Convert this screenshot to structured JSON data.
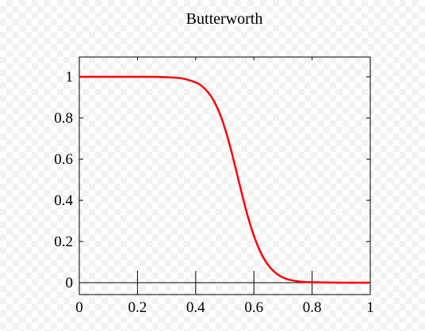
{
  "chart_data": {
    "type": "line",
    "title": "Butterworth",
    "xlabel": "",
    "ylabel": "",
    "xlim": [
      0,
      1
    ],
    "ylim": [
      -0.03,
      1.1
    ],
    "x_ticks": [
      {
        "value": 0,
        "label": "0"
      },
      {
        "value": 0.2,
        "label": "0.2"
      },
      {
        "value": 0.4,
        "label": "0.4"
      },
      {
        "value": 0.6,
        "label": "0.6"
      },
      {
        "value": 0.8,
        "label": "0.8"
      },
      {
        "value": 1,
        "label": "1"
      }
    ],
    "y_ticks": [
      {
        "value": 0,
        "label": "0"
      },
      {
        "value": 0.2,
        "label": "0.2"
      },
      {
        "value": 0.4,
        "label": "0.4"
      },
      {
        "value": 0.6,
        "label": "0.6"
      },
      {
        "value": 0.8,
        "label": "0.8"
      },
      {
        "value": 1,
        "label": "1"
      }
    ],
    "grid": false,
    "series": [
      {
        "color": "#ff0000",
        "x": [
          0,
          0.05,
          0.1,
          0.15,
          0.2,
          0.25,
          0.3,
          0.35,
          0.4,
          0.42,
          0.44,
          0.46,
          0.48,
          0.5,
          0.52,
          0.54,
          0.56,
          0.58,
          0.6,
          0.62,
          0.64,
          0.66,
          0.68,
          0.7,
          0.72,
          0.74,
          0.76,
          0.78,
          0.8,
          0.85,
          0.9,
          0.95,
          1
        ],
        "y": [
          1,
          1,
          1,
          1,
          1,
          1,
          0.998,
          0.993,
          0.973,
          0.956,
          0.929,
          0.889,
          0.831,
          0.752,
          0.653,
          0.54,
          0.425,
          0.318,
          0.228,
          0.157,
          0.104,
          0.067,
          0.042,
          0.025,
          0.015,
          0.009,
          0.005,
          0.003,
          0.002,
          0.001,
          0,
          0,
          0
        ]
      }
    ]
  }
}
